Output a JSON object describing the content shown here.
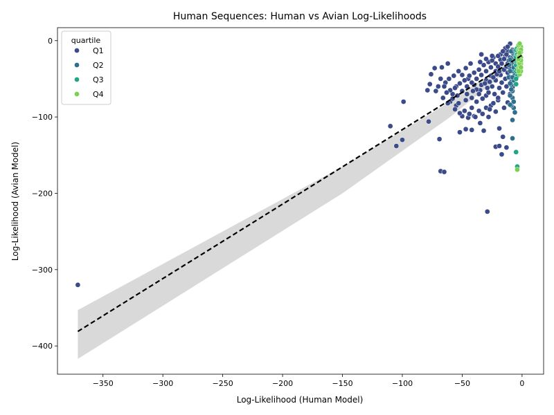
{
  "chart_data": {
    "type": "scatter",
    "title": "Human Sequences: Human vs Avian Log-Likelihoods",
    "xlabel": "Log-Likelihood (Human Model)",
    "ylabel": "Log-Likelihood (Avian Model)",
    "xlim": [
      -388,
      18
    ],
    "ylim": [
      -437,
      17
    ],
    "xticks": [
      -350,
      -300,
      -250,
      -200,
      -150,
      -100,
      -50,
      0
    ],
    "xtick_labels": [
      "−350",
      "−300",
      "−250",
      "−200",
      "−150",
      "−100",
      "−50",
      "0"
    ],
    "yticks": [
      -400,
      -300,
      -200,
      -100,
      0
    ],
    "ytick_labels": [
      "−400",
      "−300",
      "−200",
      "−100",
      "0"
    ],
    "grid": false,
    "legend": {
      "title": "quartile",
      "position": "top-left",
      "entries": [
        "Q1",
        "Q2",
        "Q3",
        "Q4"
      ]
    },
    "regression": {
      "line": [
        [
          -371,
          -381
        ],
        [
          0,
          -19
        ]
      ],
      "ci_upper": [
        [
          -371,
          -353
        ],
        [
          -150,
          -165
        ],
        [
          -60,
          -80
        ],
        [
          0,
          -14
        ]
      ],
      "ci_lower": [
        [
          -371,
          -417
        ],
        [
          -150,
          -200
        ],
        [
          -60,
          -100
        ],
        [
          0,
          -24
        ]
      ],
      "color": "#000000",
      "band_color": "#d9d9d9"
    },
    "series": [
      {
        "name": "Q1",
        "color": "#3b4a89",
        "points": [
          [
            -371,
            -320
          ],
          [
            -29,
            -224
          ],
          [
            -68,
            -171
          ],
          [
            -65,
            -172
          ],
          [
            -110,
            -112
          ],
          [
            -105,
            -138
          ],
          [
            -100,
            -130
          ],
          [
            -69,
            -129
          ],
          [
            -78,
            -106
          ],
          [
            -99,
            -80
          ],
          [
            -79,
            -65
          ],
          [
            -77,
            -57
          ],
          [
            -76,
            -44
          ],
          [
            -73,
            -36
          ],
          [
            -67,
            -35
          ],
          [
            -62,
            -30
          ],
          [
            -52,
            -120
          ],
          [
            -47,
            -116
          ],
          [
            -42,
            -117
          ],
          [
            -32,
            -118
          ],
          [
            -22,
            -139
          ],
          [
            -19,
            -138
          ],
          [
            -13,
            -140
          ],
          [
            -17,
            -149
          ],
          [
            -16,
            -126
          ],
          [
            -19,
            -115
          ],
          [
            -35,
            -108
          ],
          [
            -28,
            -100
          ],
          [
            -40,
            -99
          ],
          [
            -45,
            -101
          ],
          [
            -50,
            -99
          ],
          [
            -22,
            -93
          ],
          [
            -15,
            -88
          ],
          [
            -12,
            -81
          ],
          [
            -10,
            -70
          ],
          [
            -8,
            -61
          ],
          [
            -9,
            -54
          ],
          [
            -11,
            -47
          ],
          [
            -20,
            -78
          ],
          [
            -26,
            -85
          ],
          [
            -30,
            -72
          ],
          [
            -35,
            -65
          ],
          [
            -40,
            -58
          ],
          [
            -45,
            -50
          ],
          [
            -50,
            -45
          ],
          [
            -55,
            -60
          ],
          [
            -58,
            -70
          ],
          [
            -60,
            -80
          ],
          [
            -55,
            -85
          ],
          [
            -48,
            -92
          ],
          [
            -42,
            -88
          ],
          [
            -38,
            -80
          ],
          [
            -33,
            -76
          ],
          [
            -28,
            -68
          ],
          [
            -25,
            -60
          ],
          [
            -22,
            -52
          ],
          [
            -18,
            -45
          ],
          [
            -15,
            -38
          ],
          [
            -12,
            -30
          ],
          [
            -10,
            -22
          ],
          [
            -14,
            -20
          ],
          [
            -18,
            -25
          ],
          [
            -22,
            -30
          ],
          [
            -26,
            -35
          ],
          [
            -30,
            -40
          ],
          [
            -34,
            -45
          ],
          [
            -38,
            -50
          ],
          [
            -42,
            -55
          ],
          [
            -46,
            -60
          ],
          [
            -50,
            -66
          ],
          [
            -54,
            -72
          ],
          [
            -60,
            -65
          ],
          [
            -64,
            -55
          ],
          [
            -68,
            -50
          ],
          [
            -70,
            -60
          ],
          [
            -72,
            -66
          ],
          [
            -66,
            -75
          ],
          [
            -62,
            -82
          ],
          [
            -56,
            -90
          ],
          [
            -52,
            -95
          ],
          [
            -44,
            -96
          ],
          [
            -36,
            -92
          ],
          [
            -30,
            -88
          ],
          [
            -24,
            -82
          ],
          [
            -20,
            -75
          ],
          [
            -16,
            -68
          ],
          [
            -13,
            -60
          ],
          [
            -11,
            -35
          ],
          [
            -9,
            -28
          ],
          [
            -12,
            -14
          ],
          [
            -14,
            -10
          ],
          [
            -18,
            -18
          ],
          [
            -24,
            -22
          ],
          [
            -28,
            -28
          ],
          [
            -32,
            -32
          ],
          [
            -36,
            -38
          ],
          [
            -40,
            -42
          ],
          [
            -44,
            -46
          ],
          [
            -48,
            -52
          ],
          [
            -52,
            -56
          ],
          [
            -56,
            -62
          ],
          [
            -46,
            -70
          ],
          [
            -42,
            -75
          ],
          [
            -38,
            -64
          ],
          [
            -34,
            -58
          ],
          [
            -30,
            -52
          ],
          [
            -26,
            -46
          ],
          [
            -22,
            -40
          ],
          [
            -20,
            -34
          ],
          [
            -17,
            -30
          ],
          [
            -15,
            -24
          ],
          [
            -13,
            -18
          ],
          [
            -16,
            -14
          ],
          [
            -20,
            -20
          ],
          [
            -25,
            -26
          ],
          [
            -31,
            -56
          ],
          [
            -36,
            -70
          ],
          [
            -41,
            -66
          ],
          [
            -47,
            -78
          ],
          [
            -53,
            -82
          ],
          [
            -58,
            -76
          ],
          [
            -63,
            -68
          ],
          [
            -39,
            -100
          ],
          [
            -33,
            -96
          ],
          [
            -27,
            -90
          ],
          [
            -23,
            -70
          ],
          [
            -19,
            -62
          ],
          [
            -17,
            -55
          ],
          [
            -14,
            -50
          ],
          [
            -12,
            -42
          ],
          [
            -10,
            -36
          ],
          [
            -8,
            -30
          ],
          [
            -11,
            -26
          ],
          [
            -13,
            -34
          ],
          [
            -29,
            -62
          ],
          [
            -27,
            -54
          ],
          [
            -24,
            -48
          ],
          [
            -21,
            -44
          ],
          [
            -19,
            -40
          ],
          [
            -35,
            -28
          ],
          [
            -43,
            -30
          ],
          [
            -47,
            -36
          ],
          [
            -53,
            -40
          ],
          [
            -57,
            -46
          ],
          [
            -61,
            -50
          ],
          [
            -65,
            -60
          ],
          [
            -25,
            -20
          ],
          [
            -30,
            -24
          ],
          [
            -34,
            -18
          ],
          [
            -10,
            -4
          ],
          [
            -12,
            -8
          ],
          [
            -8,
            -12
          ]
        ]
      },
      {
        "name": "Q2",
        "color": "#2e6f8e",
        "points": [
          [
            -8,
            -128
          ],
          [
            -8,
            -104
          ],
          [
            -7,
            -88
          ],
          [
            -9,
            -85
          ],
          [
            -8,
            -75
          ],
          [
            -10,
            -72
          ],
          [
            -8,
            -66
          ],
          [
            -9,
            -58
          ],
          [
            -7,
            -52
          ],
          [
            -6,
            -45
          ],
          [
            -8,
            -40
          ],
          [
            -7,
            -35
          ],
          [
            -9,
            -30
          ],
          [
            -6,
            -26
          ],
          [
            -8,
            -22
          ],
          [
            -7,
            -18
          ],
          [
            -9,
            -14
          ],
          [
            -6,
            -12
          ],
          [
            -10,
            -25
          ],
          [
            -11,
            -32
          ],
          [
            -10,
            -40
          ],
          [
            -11,
            -48
          ],
          [
            -10,
            -56
          ],
          [
            -9,
            -64
          ],
          [
            -7,
            -80
          ],
          [
            -6,
            -94
          ],
          [
            -10,
            -84
          ],
          [
            -8,
            -48
          ],
          [
            -7,
            -28
          ],
          [
            -6,
            -20
          ]
        ]
      },
      {
        "name": "Q3",
        "color": "#21a585",
        "points": [
          [
            -4,
            -165
          ],
          [
            -5,
            -146
          ],
          [
            -5,
            -57
          ],
          [
            -4,
            -46
          ],
          [
            -5,
            -40
          ],
          [
            -4,
            -34
          ],
          [
            -5,
            -28
          ],
          [
            -4,
            -24
          ],
          [
            -5,
            -20
          ],
          [
            -4,
            -16
          ],
          [
            -5,
            -12
          ],
          [
            -4,
            -10
          ],
          [
            -5,
            -50
          ],
          [
            -4,
            -38
          ],
          [
            -5,
            -32
          ],
          [
            -4,
            -28
          ],
          [
            -5,
            -22
          ],
          [
            -4,
            -18
          ]
        ]
      },
      {
        "name": "Q4",
        "color": "#7ad151",
        "points": [
          [
            -4,
            -169
          ],
          [
            -2,
            -44
          ],
          [
            -1,
            -40
          ],
          [
            -3,
            -36
          ],
          [
            -2,
            -33
          ],
          [
            -1,
            -30
          ],
          [
            -3,
            -28
          ],
          [
            -2,
            -25
          ],
          [
            -1,
            -22
          ],
          [
            -3,
            -20
          ],
          [
            -2,
            -18
          ],
          [
            -1,
            -15
          ],
          [
            -3,
            -12
          ],
          [
            -2,
            -10
          ],
          [
            -1,
            -8
          ],
          [
            -3,
            -6
          ],
          [
            -2,
            -4
          ],
          [
            -1,
            -12
          ],
          [
            -2,
            -30
          ],
          [
            -1,
            -35
          ],
          [
            -3,
            -40
          ],
          [
            -2,
            -16
          ],
          [
            -1,
            -26
          ],
          [
            -3,
            -24
          ]
        ]
      }
    ]
  }
}
